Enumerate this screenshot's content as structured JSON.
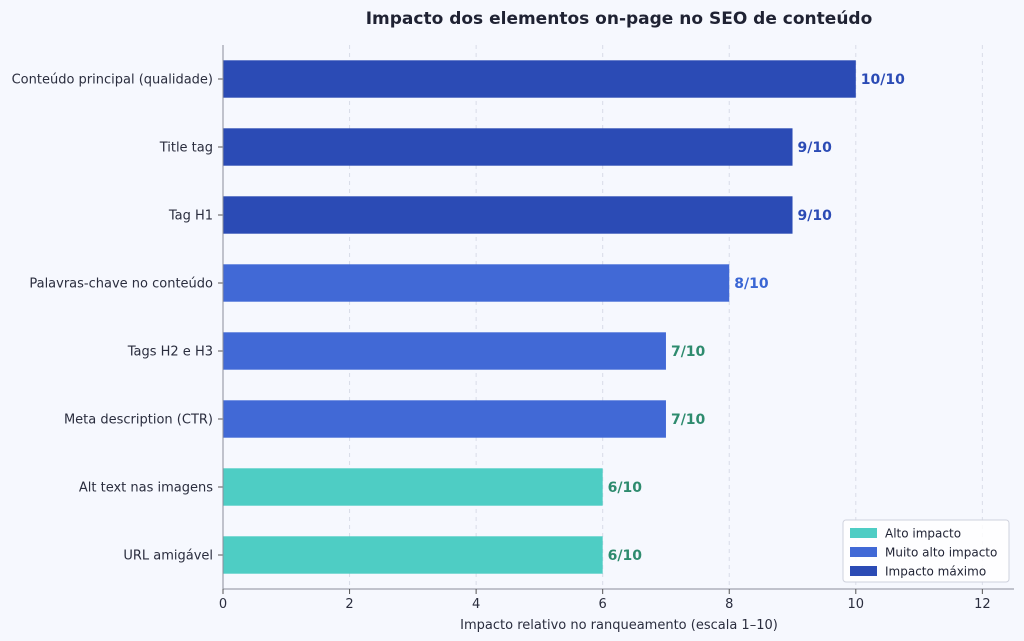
{
  "chart_data": {
    "type": "bar",
    "orientation": "horizontal",
    "title": "Impacto dos elementos on-page no SEO de conteúdo",
    "xlabel": "Impacto relativo no ranqueamento (escala 1–10)",
    "ylabel": "",
    "xlim": [
      0,
      12.5
    ],
    "xticks": [
      0,
      2,
      4,
      6,
      8,
      10,
      12
    ],
    "grid": "x-dashed",
    "legend_position": "bottom-right",
    "categories": [
      "Conteúdo principal (qualidade)",
      "Title tag",
      "Tag H1",
      "Palavras-chave no conteúdo",
      "Tags H2 e H3",
      "Meta description (CTR)",
      "Alt text nas imagens",
      "URL amigável"
    ],
    "values": [
      10,
      9,
      9,
      8,
      7,
      7,
      6,
      6
    ],
    "bar_groups": [
      "Impacto máximo",
      "Impacto máximo",
      "Impacto máximo",
      "Muito alto impacto",
      "Muito alto impacto",
      "Muito alto impacto",
      "Alto impacto",
      "Alto impacto"
    ],
    "data_labels": [
      "10/10",
      "9/10",
      "9/10",
      "8/10",
      "7/10",
      "7/10",
      "6/10",
      "6/10"
    ],
    "data_label_colors": [
      "#2b4bb5",
      "#2b4bb5",
      "#2b4bb5",
      "#3a66d4",
      "#2e8b6e",
      "#2e8b6e",
      "#2e8b6e",
      "#2e8b6e"
    ],
    "legend": [
      {
        "name": "Alto impacto",
        "color": "#4ecdc4"
      },
      {
        "name": "Muito alto impacto",
        "color": "#4169d6"
      },
      {
        "name": "Impacto máximo",
        "color": "#2b4bb5"
      }
    ]
  }
}
